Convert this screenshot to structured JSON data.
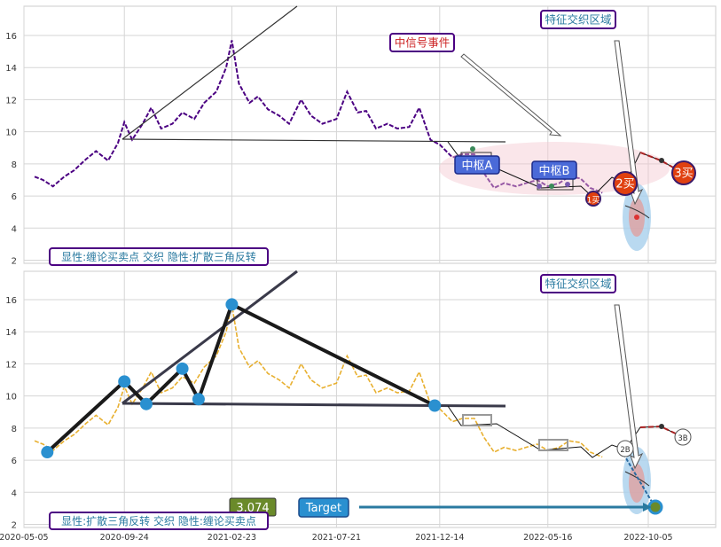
{
  "chart_data": [
    {
      "type": "line",
      "panel": "top",
      "ylim": [
        2,
        17.8
      ],
      "yticks": [
        2,
        4,
        6,
        8,
        10,
        12,
        14,
        16
      ],
      "grid": true,
      "series": [
        {
          "color": "#4b0082",
          "x": [
            "2020-05-20",
            "2020-06-01",
            "2020-06-15",
            "2020-07-01",
            "2020-07-15",
            "2020-08-01",
            "2020-08-15",
            "2020-09-01",
            "2020-09-15",
            "2020-09-24",
            "2020-10-05",
            "2020-10-20",
            "2020-11-01",
            "2020-11-15",
            "2020-12-01",
            "2020-12-15",
            "2021-01-01",
            "2021-01-15",
            "2021-02-01",
            "2021-02-15",
            "2021-02-23",
            "2021-03-05",
            "2021-03-20",
            "2021-04-01",
            "2021-04-15",
            "2021-05-01",
            "2021-05-15",
            "2021-06-01",
            "2021-06-15",
            "2021-07-01",
            "2021-07-21",
            "2021-08-05",
            "2021-08-20",
            "2021-09-01",
            "2021-09-15",
            "2021-10-01",
            "2021-10-15",
            "2021-11-01",
            "2021-11-15",
            "2021-12-01",
            "2021-12-14",
            "2022-01-01",
            "2022-01-15",
            "2022-02-01",
            "2022-02-15",
            "2022-03-01",
            "2022-03-15",
            "2022-04-01",
            "2022-04-15",
            "2022-05-01",
            "2022-05-16",
            "2022-06-01",
            "2022-06-15",
            "2022-07-01",
            "2022-07-15",
            "2022-08-01"
          ],
          "y": [
            7.2,
            7.0,
            6.6,
            7.2,
            7.6,
            8.3,
            8.8,
            8.2,
            9.3,
            10.6,
            9.5,
            10.5,
            11.5,
            10.2,
            10.5,
            11.2,
            10.8,
            11.8,
            12.5,
            14.0,
            15.7,
            13.0,
            11.8,
            12.2,
            11.4,
            11.0,
            10.5,
            12.0,
            11.0,
            10.5,
            10.8,
            12.5,
            11.2,
            11.3,
            10.2,
            10.5,
            10.2,
            10.3,
            11.5,
            9.5,
            9.2,
            8.4,
            8.6,
            8.6,
            7.4,
            6.5,
            6.8,
            6.6,
            6.8,
            7.0,
            6.6,
            6.8,
            7.2,
            7.1,
            6.5,
            6.2
          ]
        }
      ],
      "annotations": [
        "中信号事件",
        "特征交织区域",
        "中枢A",
        "中枢B",
        "1买",
        "2买",
        "3买"
      ],
      "legend_text": "显性:缠论买卖点 交织 隐性:扩散三角反转"
    },
    {
      "type": "line",
      "panel": "bottom",
      "ylim": [
        2,
        17.8
      ],
      "yticks": [
        2,
        4,
        6,
        8,
        10,
        12,
        14,
        16
      ],
      "xticks": [
        "2020-05-05",
        "2020-09-24",
        "2021-02-23",
        "2021-07-21",
        "2021-12-14",
        "2022-05-16",
        "2022-10-05"
      ],
      "grid": true,
      "series": [
        {
          "color": "#e8b030",
          "x": [
            "2020-05-20",
            "2020-06-01",
            "2020-06-15",
            "2020-07-01",
            "2020-07-15",
            "2020-08-01",
            "2020-08-15",
            "2020-09-01",
            "2020-09-15",
            "2020-09-24",
            "2020-10-05",
            "2020-10-20",
            "2020-11-01",
            "2020-11-15",
            "2020-12-01",
            "2020-12-15",
            "2021-01-01",
            "2021-01-15",
            "2021-02-01",
            "2021-02-15",
            "2021-02-23",
            "2021-03-05",
            "2021-03-20",
            "2021-04-01",
            "2021-04-15",
            "2021-05-01",
            "2021-05-15",
            "2021-06-01",
            "2021-06-15",
            "2021-07-01",
            "2021-07-21",
            "2021-08-05",
            "2021-08-20",
            "2021-09-01",
            "2021-09-15",
            "2021-10-01",
            "2021-10-15",
            "2021-11-01",
            "2021-11-15",
            "2021-12-01",
            "2021-12-14",
            "2022-01-01",
            "2022-01-15",
            "2022-02-01",
            "2022-02-15",
            "2022-03-01",
            "2022-03-15",
            "2022-04-01",
            "2022-04-15",
            "2022-05-01",
            "2022-05-16",
            "2022-06-01",
            "2022-06-15",
            "2022-07-01",
            "2022-07-15",
            "2022-08-01"
          ],
          "y": [
            7.2,
            7.0,
            6.6,
            7.2,
            7.6,
            8.3,
            8.8,
            8.2,
            9.3,
            10.6,
            9.5,
            10.5,
            11.5,
            10.2,
            10.5,
            11.2,
            10.8,
            11.8,
            12.5,
            14.0,
            15.7,
            13.0,
            11.8,
            12.2,
            11.4,
            11.0,
            10.5,
            12.0,
            11.0,
            10.5,
            10.8,
            12.5,
            11.2,
            11.3,
            10.2,
            10.5,
            10.2,
            10.3,
            11.5,
            9.5,
            9.2,
            8.4,
            8.6,
            8.6,
            7.4,
            6.5,
            6.8,
            6.6,
            6.8,
            7.0,
            6.6,
            6.8,
            7.2,
            7.1,
            6.5,
            6.2
          ]
        }
      ],
      "pattern_points": [
        {
          "x": "2020-06-07",
          "y": 6.5
        },
        {
          "x": "2020-09-24",
          "y": 10.9
        },
        {
          "x": "2020-10-25",
          "y": 9.5
        },
        {
          "x": "2020-12-15",
          "y": 11.7
        },
        {
          "x": "2021-01-07",
          "y": 9.8
        },
        {
          "x": "2021-02-23",
          "y": 15.7
        },
        {
          "x": "2021-12-07",
          "y": 9.4
        }
      ],
      "target_value": "3.074",
      "target_label": "Target",
      "annotations": [
        "特征交织区域",
        "2B",
        "3B"
      ],
      "legend_text": "显性:扩散三角反转 交织 隐性:缠论买卖点"
    }
  ]
}
